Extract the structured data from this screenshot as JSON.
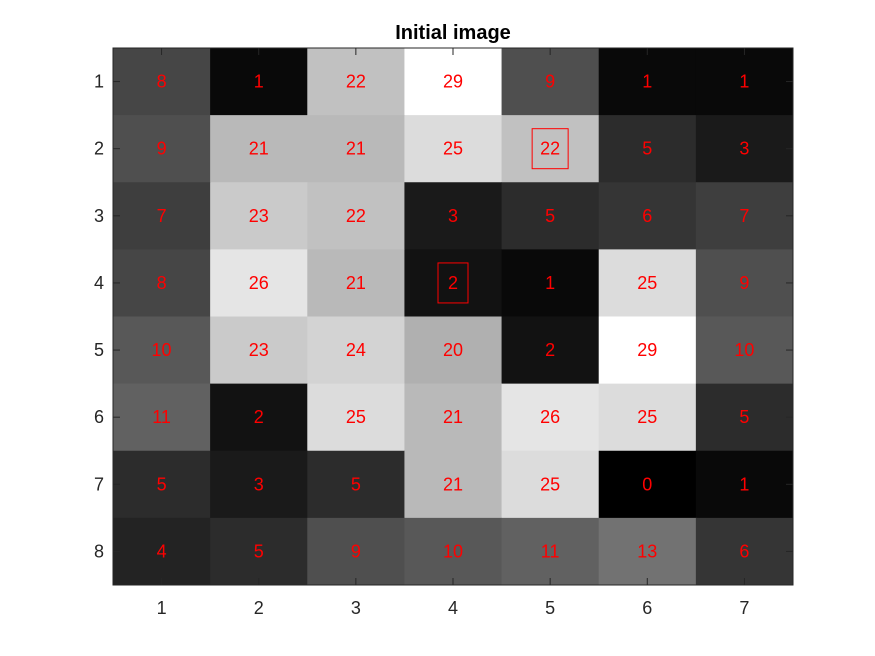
{
  "chart_data": {
    "type": "heatmap",
    "title": "Initial image",
    "colormap": "gray",
    "x_ticks": [
      "1",
      "2",
      "3",
      "4",
      "5",
      "6",
      "7"
    ],
    "y_ticks": [
      "1",
      "2",
      "3",
      "4",
      "5",
      "6",
      "7",
      "8"
    ],
    "values": [
      [
        8,
        1,
        22,
        29,
        9,
        1,
        1
      ],
      [
        9,
        21,
        21,
        25,
        22,
        5,
        3
      ],
      [
        7,
        23,
        22,
        3,
        5,
        6,
        7
      ],
      [
        8,
        26,
        21,
        2,
        1,
        25,
        9
      ],
      [
        10,
        23,
        24,
        20,
        2,
        29,
        10
      ],
      [
        11,
        2,
        25,
        21,
        26,
        25,
        5
      ],
      [
        5,
        3,
        5,
        21,
        25,
        0,
        1
      ],
      [
        4,
        5,
        9,
        10,
        11,
        13,
        6
      ]
    ],
    "value_range": [
      0,
      29
    ],
    "label_color": "#ff0000",
    "highlighted_cells": [
      {
        "row": 2,
        "col": 5
      },
      {
        "row": 4,
        "col": 4
      }
    ],
    "highlight_color": "#ff0000"
  }
}
